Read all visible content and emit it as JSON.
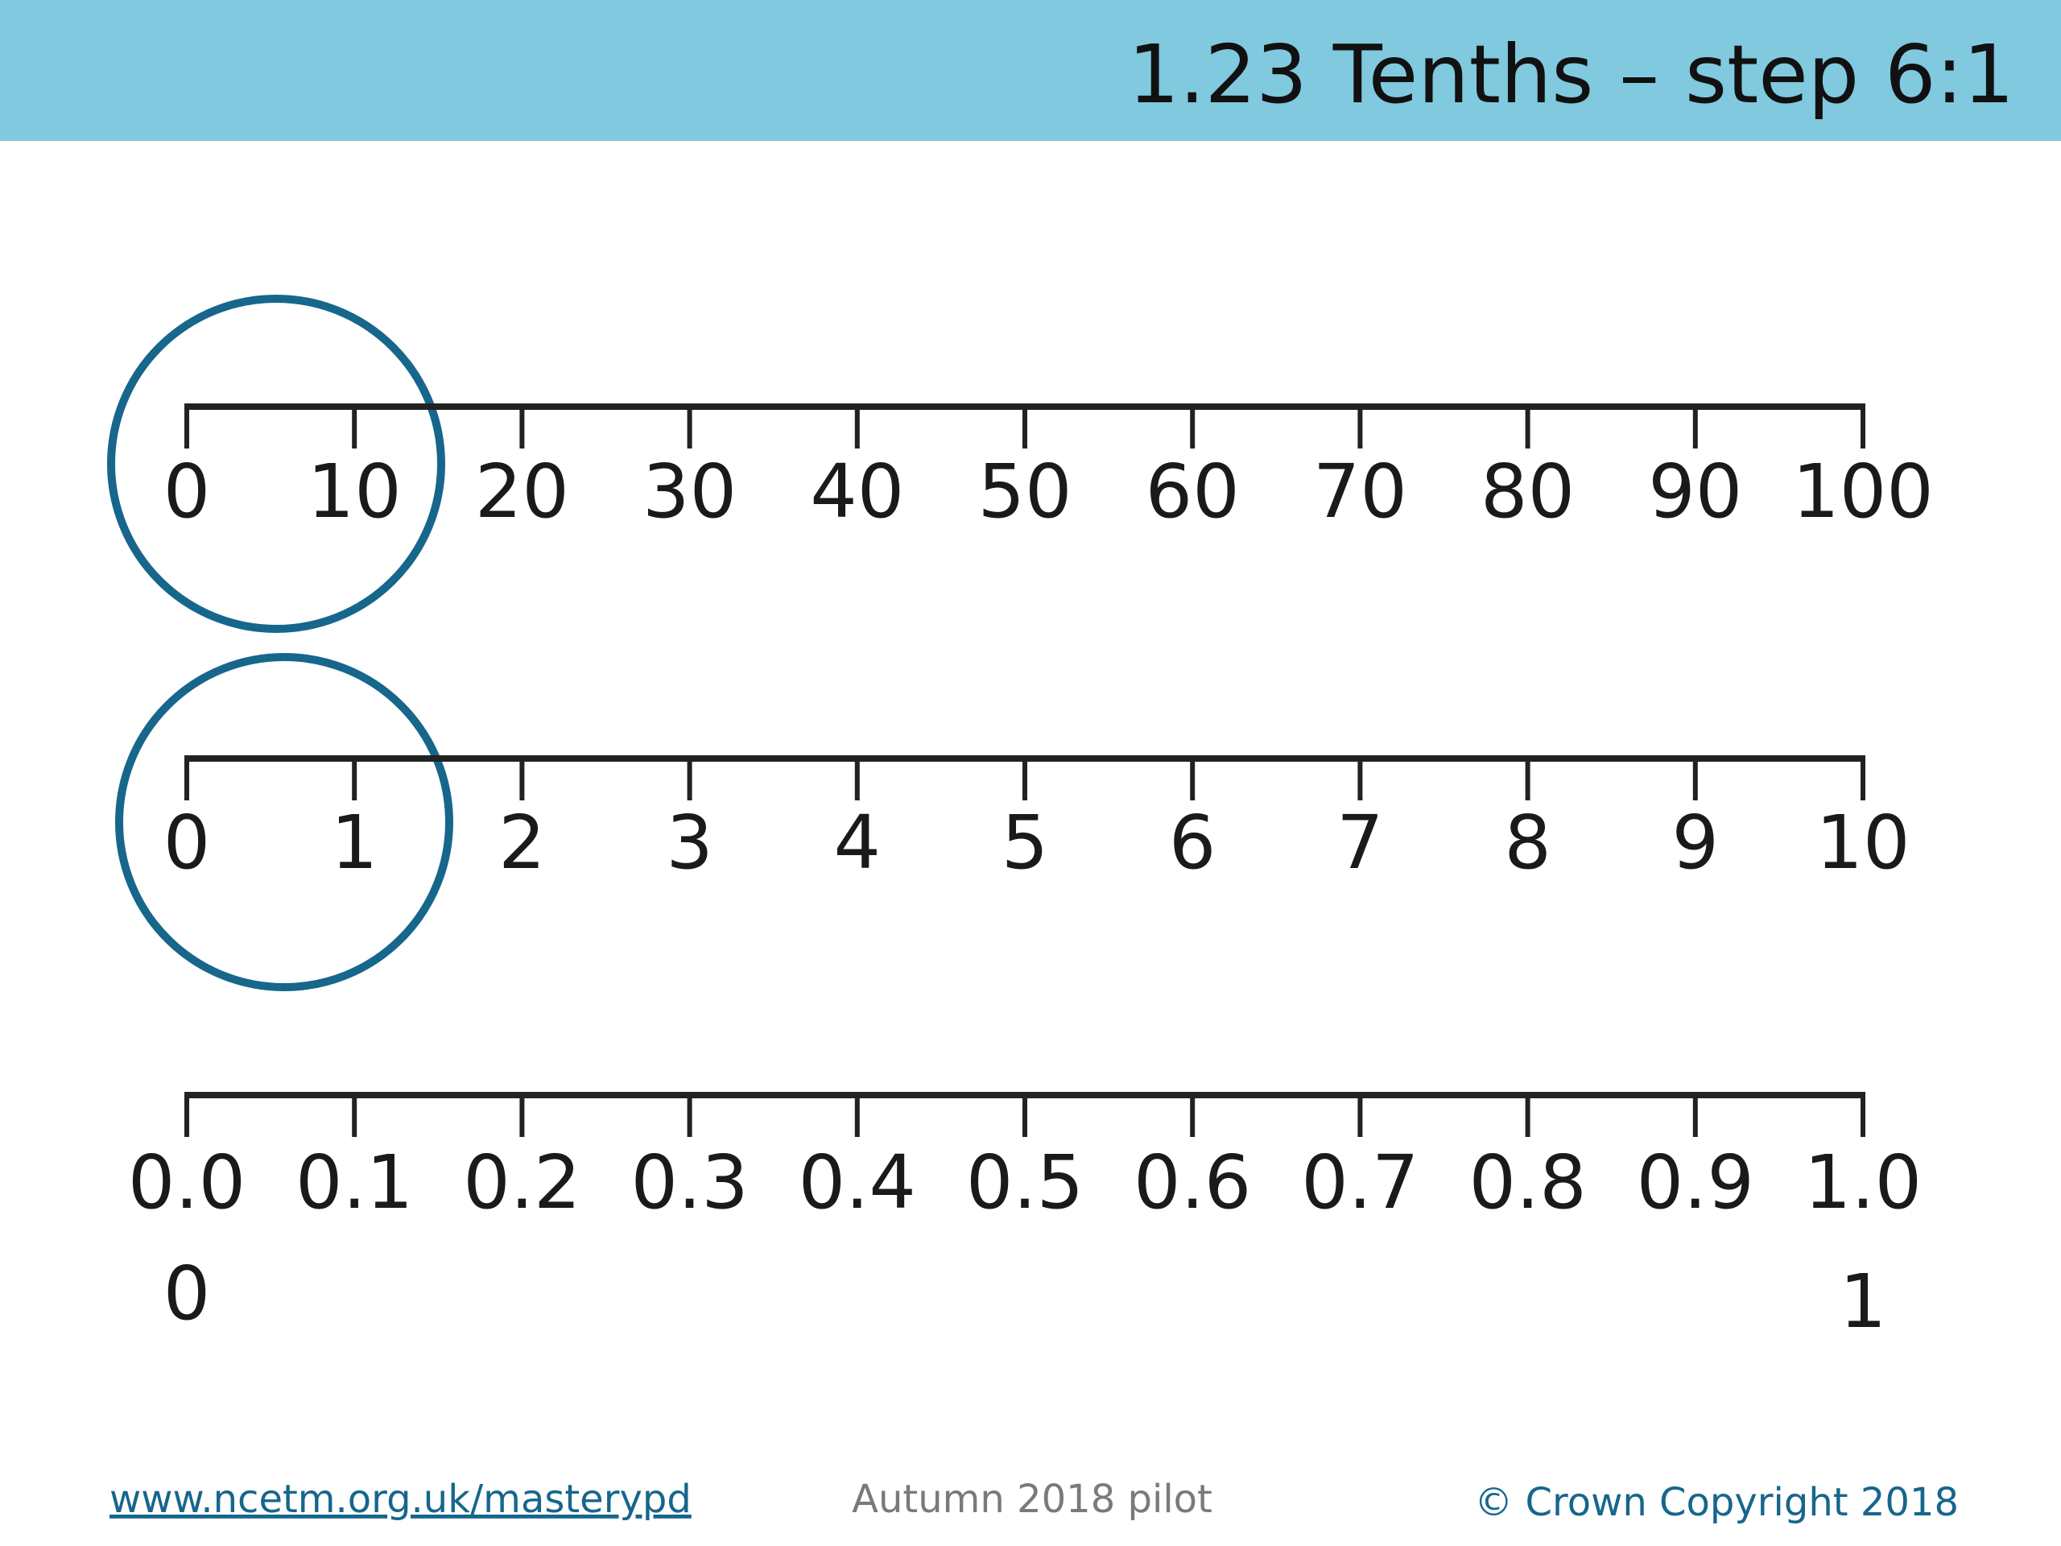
{
  "header": {
    "title": "1.23 Tenths – step 6:1"
  },
  "number_lines": [
    {
      "labels": [
        "0",
        "10",
        "20",
        "30",
        "40",
        "50",
        "60",
        "70",
        "80",
        "90",
        "100"
      ]
    },
    {
      "labels": [
        "0",
        "1",
        "2",
        "3",
        "4",
        "5",
        "6",
        "7",
        "8",
        "9",
        "10"
      ]
    },
    {
      "labels": [
        "0.0",
        "0.1",
        "0.2",
        "0.3",
        "0.4",
        "0.5",
        "0.6",
        "0.7",
        "0.8",
        "0.9",
        "1.0"
      ],
      "end_labels": [
        "0",
        "1"
      ]
    }
  ],
  "footer": {
    "link": "www.ncetm.org.uk/masterypd",
    "note": "Autumn 2018 pilot",
    "copyright": "© Crown Copyright 2018"
  }
}
